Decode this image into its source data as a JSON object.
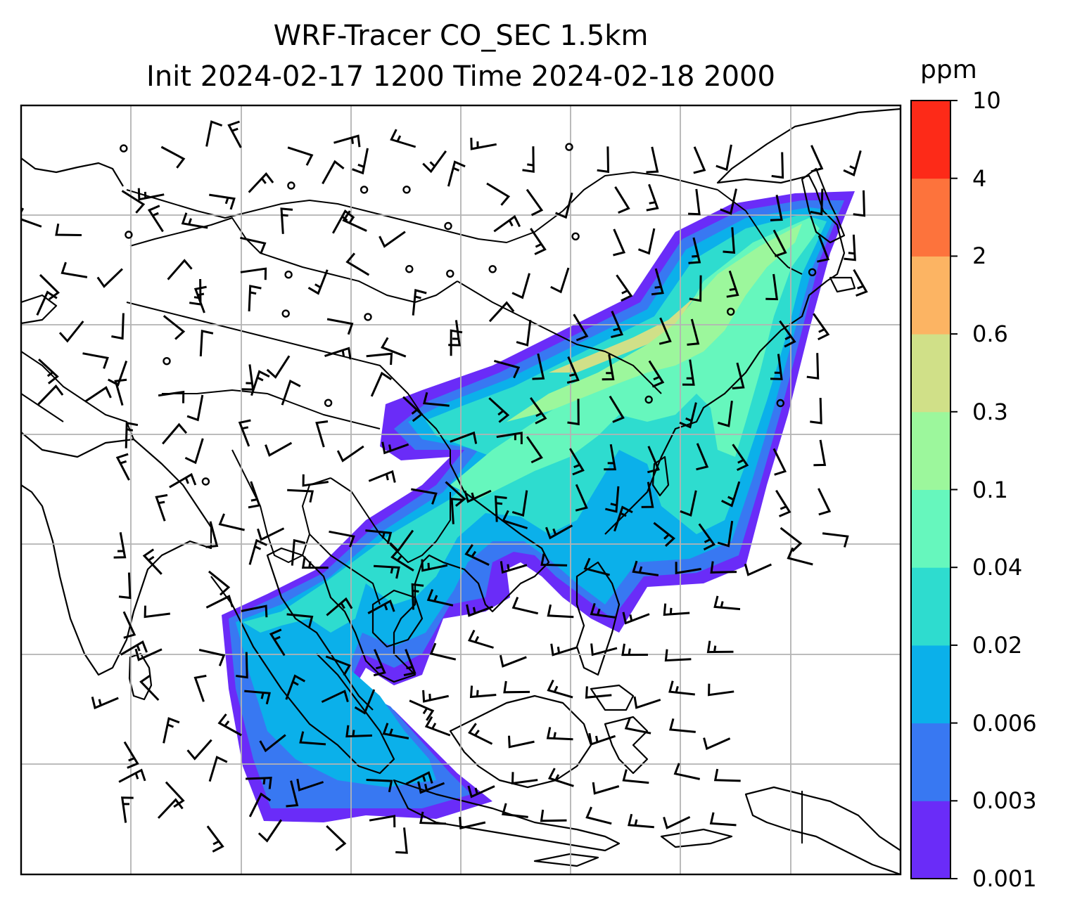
{
  "map": {
    "title_line1": "WRF-Tracer CO_SEC 1.5km",
    "title_line2": "Init 2024-02-17 1200 Time 2024-02-18 2000",
    "region": "South and East Asia",
    "gridlines": true,
    "overlays": [
      "coastlines",
      "country-borders",
      "wind-barbs"
    ],
    "field": "CO_SEC tracer concentration"
  },
  "colorbar": {
    "unit": "ppm",
    "ticks": [
      "10",
      "4",
      "2",
      "0.6",
      "0.3",
      "0.1",
      "0.04",
      "0.02",
      "0.006",
      "0.003",
      "0.001"
    ],
    "colors": [
      "#6a2cf8",
      "#3878f2",
      "#0bb0ea",
      "#2edccf",
      "#66f7bd",
      "#9cf79c",
      "#d0e088",
      "#fcb463",
      "#fd733c",
      "#fd2a18"
    ]
  }
}
